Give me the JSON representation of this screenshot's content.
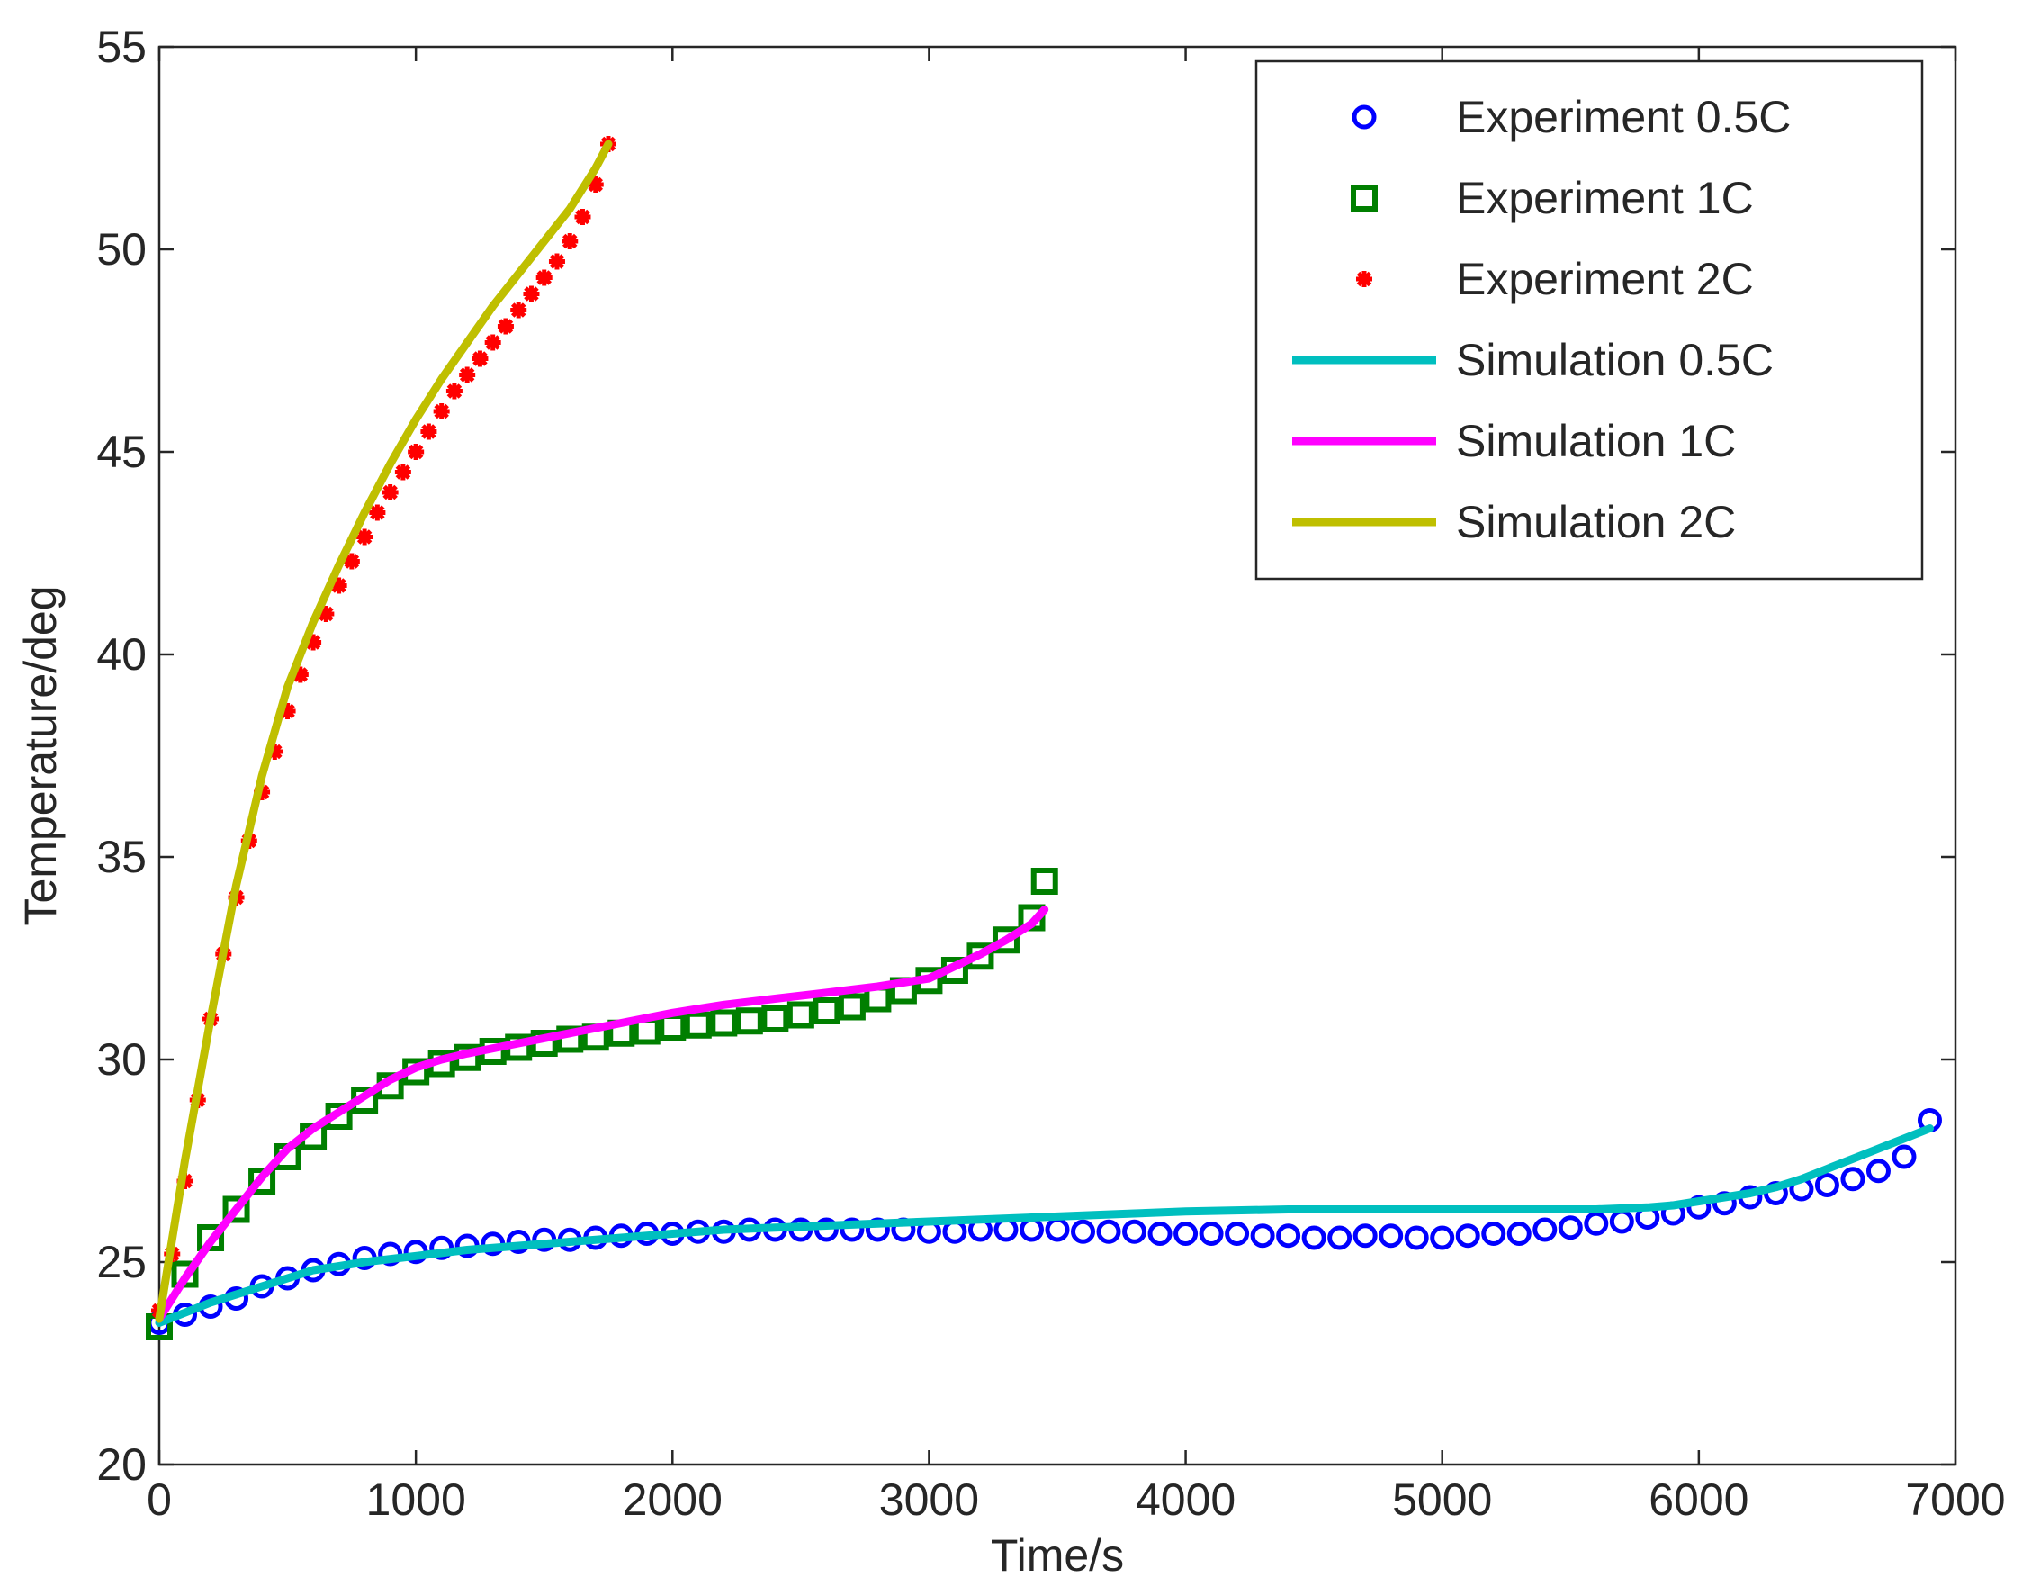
{
  "chart_data": {
    "type": "scatter",
    "title": "",
    "xlabel": "Time/s",
    "ylabel": "Temperature/deg",
    "xlim": [
      0,
      7000
    ],
    "ylim": [
      20,
      55
    ],
    "xticks": [
      0,
      1000,
      2000,
      3000,
      4000,
      5000,
      6000,
      7000
    ],
    "yticks": [
      20,
      25,
      30,
      35,
      40,
      45,
      50,
      55
    ],
    "xtick_labels": [
      "0",
      "1000",
      "2000",
      "3000",
      "4000",
      "5000",
      "6000",
      "7000"
    ],
    "ytick_labels": [
      "20",
      "25",
      "30",
      "35",
      "40",
      "45",
      "50",
      "55"
    ],
    "grid": false,
    "legend_position": "top-right",
    "series": [
      {
        "name": "Experiment 0.5C",
        "kind": "markers",
        "marker": "circle",
        "color": "#0000ff",
        "x": [
          0,
          100,
          200,
          300,
          400,
          500,
          600,
          700,
          800,
          900,
          1000,
          1100,
          1200,
          1300,
          1400,
          1500,
          1600,
          1700,
          1800,
          1900,
          2000,
          2100,
          2200,
          2300,
          2400,
          2500,
          2600,
          2700,
          2800,
          2900,
          3000,
          3100,
          3200,
          3300,
          3400,
          3500,
          3600,
          3700,
          3800,
          3900,
          4000,
          4100,
          4200,
          4300,
          4400,
          4500,
          4600,
          4700,
          4800,
          4900,
          5000,
          5100,
          5200,
          5300,
          5400,
          5500,
          5600,
          5700,
          5800,
          5900,
          6000,
          6100,
          6200,
          6300,
          6400,
          6500,
          6600,
          6700,
          6800,
          6900
        ],
        "y": [
          23.5,
          23.7,
          23.9,
          24.1,
          24.4,
          24.6,
          24.8,
          24.95,
          25.1,
          25.2,
          25.25,
          25.35,
          25.4,
          25.45,
          25.5,
          25.55,
          25.55,
          25.6,
          25.65,
          25.7,
          25.7,
          25.75,
          25.75,
          25.8,
          25.8,
          25.8,
          25.8,
          25.8,
          25.8,
          25.8,
          25.75,
          25.75,
          25.8,
          25.8,
          25.8,
          25.8,
          25.75,
          25.75,
          25.75,
          25.7,
          25.7,
          25.7,
          25.7,
          25.65,
          25.65,
          25.6,
          25.6,
          25.65,
          25.65,
          25.6,
          25.6,
          25.65,
          25.7,
          25.7,
          25.8,
          25.85,
          25.95,
          26.0,
          26.1,
          26.2,
          26.35,
          26.45,
          26.6,
          26.7,
          26.8,
          26.9,
          27.05,
          27.25,
          27.6,
          28.5
        ]
      },
      {
        "name": "Experiment 1C",
        "kind": "markers",
        "marker": "square",
        "color": "#007f00",
        "x": [
          0,
          100,
          200,
          300,
          400,
          500,
          600,
          700,
          800,
          900,
          1000,
          1100,
          1200,
          1300,
          1400,
          1500,
          1600,
          1700,
          1800,
          1900,
          2000,
          2100,
          2200,
          2300,
          2400,
          2500,
          2600,
          2700,
          2800,
          2900,
          3000,
          3100,
          3200,
          3300,
          3400,
          3450
        ],
        "y": [
          23.4,
          24.7,
          25.6,
          26.3,
          27.0,
          27.6,
          28.1,
          28.6,
          29.0,
          29.35,
          29.7,
          29.9,
          30.05,
          30.2,
          30.3,
          30.4,
          30.5,
          30.55,
          30.65,
          30.7,
          30.8,
          30.85,
          30.9,
          30.95,
          31.0,
          31.1,
          31.2,
          31.3,
          31.5,
          31.7,
          31.95,
          32.2,
          32.55,
          32.95,
          33.5,
          34.4
        ]
      },
      {
        "name": "Experiment 2C",
        "kind": "markers",
        "marker": "star",
        "color": "#ff0000",
        "x": [
          0,
          50,
          100,
          150,
          200,
          250,
          300,
          350,
          400,
          450,
          500,
          550,
          600,
          650,
          700,
          750,
          800,
          850,
          900,
          950,
          1000,
          1050,
          1100,
          1150,
          1200,
          1250,
          1300,
          1350,
          1400,
          1450,
          1500,
          1550,
          1600,
          1650,
          1700,
          1750
        ],
        "y": [
          23.8,
          25.2,
          27.0,
          29.0,
          31.0,
          32.6,
          34.0,
          35.4,
          36.6,
          37.6,
          38.6,
          39.5,
          40.3,
          41.0,
          41.7,
          42.3,
          42.9,
          43.5,
          44.0,
          44.5,
          45.0,
          45.5,
          46.0,
          46.5,
          46.9,
          47.3,
          47.7,
          48.1,
          48.5,
          48.9,
          49.3,
          49.7,
          50.2,
          50.8,
          51.6,
          52.6
        ]
      },
      {
        "name": "Simulation 0.5C",
        "kind": "line",
        "color": "#00bfbf",
        "x": [
          0,
          200,
          400,
          600,
          800,
          1000,
          1200,
          1400,
          1600,
          1800,
          2000,
          2200,
          2400,
          2600,
          2800,
          3000,
          3200,
          3400,
          3600,
          3800,
          4000,
          4400,
          4800,
          5200,
          5600,
          5800,
          5900,
          6000,
          6100,
          6200,
          6300,
          6400,
          6500,
          6600,
          6700,
          6800,
          6900
        ],
        "y": [
          23.5,
          24.0,
          24.4,
          24.8,
          25.0,
          25.15,
          25.3,
          25.4,
          25.5,
          25.6,
          25.7,
          25.8,
          25.85,
          25.9,
          25.95,
          26.0,
          26.05,
          26.1,
          26.15,
          26.2,
          26.25,
          26.3,
          26.3,
          26.3,
          26.3,
          26.35,
          26.4,
          26.5,
          26.6,
          26.7,
          26.85,
          27.05,
          27.3,
          27.55,
          27.8,
          28.05,
          28.3
        ]
      },
      {
        "name": "Simulation 1C",
        "kind": "line",
        "color": "#ff00ff",
        "x": [
          0,
          100,
          200,
          300,
          400,
          500,
          600,
          700,
          800,
          900,
          1000,
          1100,
          1200,
          1400,
          1600,
          1800,
          2000,
          2200,
          2400,
          2600,
          2800,
          3000,
          3100,
          3200,
          3300,
          3400,
          3450
        ],
        "y": [
          23.6,
          24.6,
          25.5,
          26.3,
          27.1,
          27.8,
          28.3,
          28.7,
          29.1,
          29.5,
          29.8,
          30.0,
          30.15,
          30.4,
          30.65,
          30.9,
          31.15,
          31.35,
          31.5,
          31.65,
          31.8,
          32.0,
          32.3,
          32.6,
          32.95,
          33.35,
          33.7
        ]
      },
      {
        "name": "Simulation 2C",
        "kind": "line",
        "color": "#bfbf00",
        "x": [
          0,
          100,
          200,
          300,
          400,
          500,
          600,
          700,
          800,
          900,
          1000,
          1100,
          1200,
          1300,
          1400,
          1500,
          1600,
          1700,
          1750
        ],
        "y": [
          23.6,
          27.5,
          31.0,
          34.3,
          37.0,
          39.2,
          40.8,
          42.2,
          43.5,
          44.7,
          45.8,
          46.8,
          47.7,
          48.6,
          49.4,
          50.2,
          51.0,
          52.0,
          52.6
        ]
      }
    ]
  }
}
